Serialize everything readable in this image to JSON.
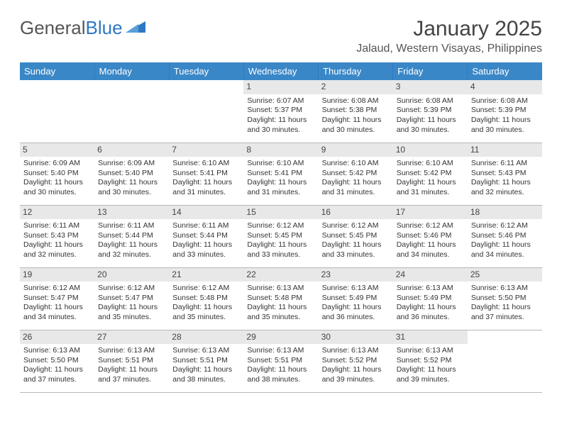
{
  "brand": {
    "part1": "General",
    "part2": "Blue"
  },
  "title": "January 2025",
  "location": "Jalaud, Western Visayas, Philippines",
  "colors": {
    "header_bg": "#3a87c7",
    "header_text": "#ffffff",
    "daynum_bg": "#e8e8e8",
    "daynum_text": "#444444",
    "body_text": "#333333",
    "row_border": "#b8b8b8",
    "brand_gray": "#555555",
    "brand_blue": "#2f78c4"
  },
  "typography": {
    "title_fontsize": 30,
    "location_fontsize": 16,
    "dayheader_fontsize": 13,
    "cell_fontsize": 10.5
  },
  "dayHeaders": [
    "Sunday",
    "Monday",
    "Tuesday",
    "Wednesday",
    "Thursday",
    "Friday",
    "Saturday"
  ],
  "weeks": [
    [
      null,
      null,
      null,
      {
        "n": "1",
        "sr": "6:07 AM",
        "ss": "5:37 PM",
        "dl": "11 hours and 30 minutes."
      },
      {
        "n": "2",
        "sr": "6:08 AM",
        "ss": "5:38 PM",
        "dl": "11 hours and 30 minutes."
      },
      {
        "n": "3",
        "sr": "6:08 AM",
        "ss": "5:39 PM",
        "dl": "11 hours and 30 minutes."
      },
      {
        "n": "4",
        "sr": "6:08 AM",
        "ss": "5:39 PM",
        "dl": "11 hours and 30 minutes."
      }
    ],
    [
      {
        "n": "5",
        "sr": "6:09 AM",
        "ss": "5:40 PM",
        "dl": "11 hours and 30 minutes."
      },
      {
        "n": "6",
        "sr": "6:09 AM",
        "ss": "5:40 PM",
        "dl": "11 hours and 30 minutes."
      },
      {
        "n": "7",
        "sr": "6:10 AM",
        "ss": "5:41 PM",
        "dl": "11 hours and 31 minutes."
      },
      {
        "n": "8",
        "sr": "6:10 AM",
        "ss": "5:41 PM",
        "dl": "11 hours and 31 minutes."
      },
      {
        "n": "9",
        "sr": "6:10 AM",
        "ss": "5:42 PM",
        "dl": "11 hours and 31 minutes."
      },
      {
        "n": "10",
        "sr": "6:10 AM",
        "ss": "5:42 PM",
        "dl": "11 hours and 31 minutes."
      },
      {
        "n": "11",
        "sr": "6:11 AM",
        "ss": "5:43 PM",
        "dl": "11 hours and 32 minutes."
      }
    ],
    [
      {
        "n": "12",
        "sr": "6:11 AM",
        "ss": "5:43 PM",
        "dl": "11 hours and 32 minutes."
      },
      {
        "n": "13",
        "sr": "6:11 AM",
        "ss": "5:44 PM",
        "dl": "11 hours and 32 minutes."
      },
      {
        "n": "14",
        "sr": "6:11 AM",
        "ss": "5:44 PM",
        "dl": "11 hours and 33 minutes."
      },
      {
        "n": "15",
        "sr": "6:12 AM",
        "ss": "5:45 PM",
        "dl": "11 hours and 33 minutes."
      },
      {
        "n": "16",
        "sr": "6:12 AM",
        "ss": "5:45 PM",
        "dl": "11 hours and 33 minutes."
      },
      {
        "n": "17",
        "sr": "6:12 AM",
        "ss": "5:46 PM",
        "dl": "11 hours and 34 minutes."
      },
      {
        "n": "18",
        "sr": "6:12 AM",
        "ss": "5:46 PM",
        "dl": "11 hours and 34 minutes."
      }
    ],
    [
      {
        "n": "19",
        "sr": "6:12 AM",
        "ss": "5:47 PM",
        "dl": "11 hours and 34 minutes."
      },
      {
        "n": "20",
        "sr": "6:12 AM",
        "ss": "5:47 PM",
        "dl": "11 hours and 35 minutes."
      },
      {
        "n": "21",
        "sr": "6:12 AM",
        "ss": "5:48 PM",
        "dl": "11 hours and 35 minutes."
      },
      {
        "n": "22",
        "sr": "6:13 AM",
        "ss": "5:48 PM",
        "dl": "11 hours and 35 minutes."
      },
      {
        "n": "23",
        "sr": "6:13 AM",
        "ss": "5:49 PM",
        "dl": "11 hours and 36 minutes."
      },
      {
        "n": "24",
        "sr": "6:13 AM",
        "ss": "5:49 PM",
        "dl": "11 hours and 36 minutes."
      },
      {
        "n": "25",
        "sr": "6:13 AM",
        "ss": "5:50 PM",
        "dl": "11 hours and 37 minutes."
      }
    ],
    [
      {
        "n": "26",
        "sr": "6:13 AM",
        "ss": "5:50 PM",
        "dl": "11 hours and 37 minutes."
      },
      {
        "n": "27",
        "sr": "6:13 AM",
        "ss": "5:51 PM",
        "dl": "11 hours and 37 minutes."
      },
      {
        "n": "28",
        "sr": "6:13 AM",
        "ss": "5:51 PM",
        "dl": "11 hours and 38 minutes."
      },
      {
        "n": "29",
        "sr": "6:13 AM",
        "ss": "5:51 PM",
        "dl": "11 hours and 38 minutes."
      },
      {
        "n": "30",
        "sr": "6:13 AM",
        "ss": "5:52 PM",
        "dl": "11 hours and 39 minutes."
      },
      {
        "n": "31",
        "sr": "6:13 AM",
        "ss": "5:52 PM",
        "dl": "11 hours and 39 minutes."
      },
      null
    ]
  ],
  "labels": {
    "sunrise": "Sunrise: ",
    "sunset": "Sunset: ",
    "daylight": "Daylight: "
  }
}
